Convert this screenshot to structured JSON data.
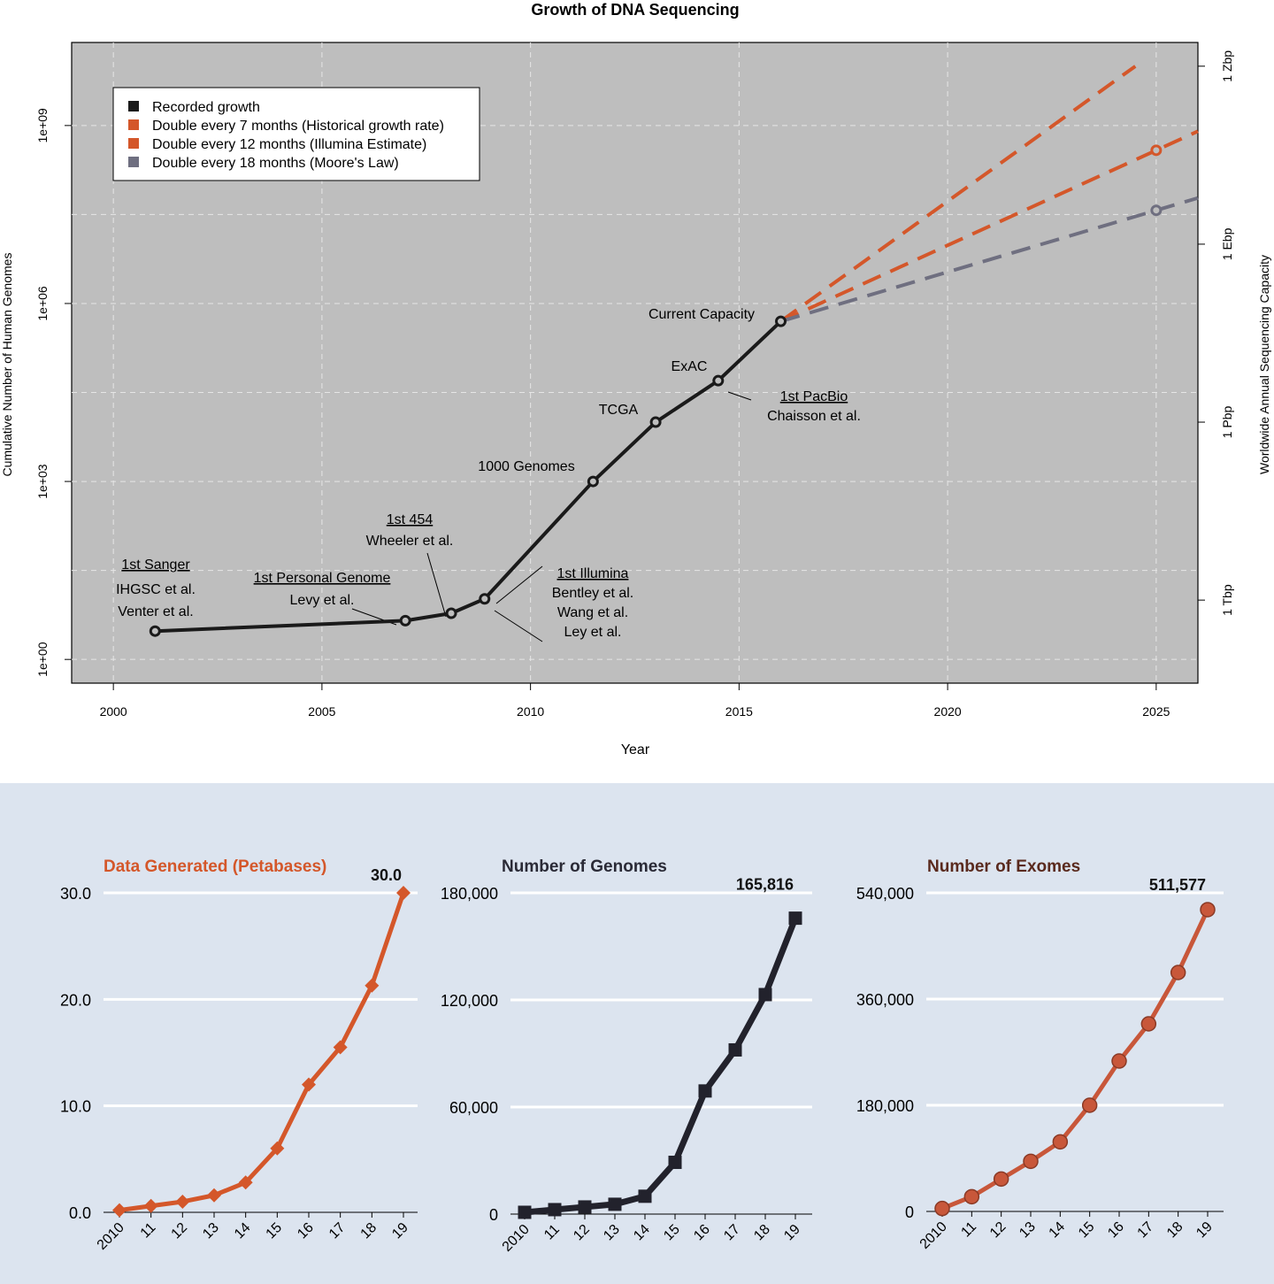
{
  "chart_data": [
    {
      "type": "line",
      "title": "Growth of DNA Sequencing",
      "xlabel": "Year",
      "ylabel": "Cumulative Number of Human Genomes",
      "y2label": "Worldwide Annual Sequencing Capacity",
      "xlim": [
        1999,
        2026
      ],
      "xticks": [
        2000,
        2005,
        2010,
        2015,
        2020,
        2025
      ],
      "y_scale": "log10",
      "ylim_log10": [
        -0.4,
        10.4
      ],
      "yticks": [
        {
          "value": 1,
          "label": "1e+00"
        },
        {
          "value": 1000,
          "label": "1e+03"
        },
        {
          "value": 1000000,
          "label": "1e+06"
        },
        {
          "value": 1000000000,
          "label": "1e+09"
        }
      ],
      "y2ticks": [
        {
          "value": 10,
          "label": "1 Tbp"
        },
        {
          "value": 10000,
          "label": "1 Pbp"
        },
        {
          "value": 10000000,
          "label": "1 Ebp"
        },
        {
          "value": 10000000000,
          "label": "1 Zbp"
        }
      ],
      "grid": true,
      "background": "#bebebe",
      "legend_position": "top-left",
      "series": [
        {
          "name": "Recorded growth",
          "color": "#1a1a1a",
          "style": "solid",
          "points": [
            {
              "x": 2001,
              "y": 3
            },
            {
              "x": 2007,
              "y": 4.5
            },
            {
              "x": 2008.1,
              "y": 6
            },
            {
              "x": 2008.9,
              "y": 10.5
            },
            {
              "x": 2011.5,
              "y": 1000
            },
            {
              "x": 2013,
              "y": 10000
            },
            {
              "x": 2014.5,
              "y": 50000
            },
            {
              "x": 2016,
              "y": 500000
            }
          ]
        },
        {
          "name": "Double every 7 months (Historical growth rate)",
          "color": "#d4572a",
          "style": "dashed",
          "points": [
            {
              "x": 2016,
              "y": 500000
            },
            {
              "x": 2024.5,
              "y": 10000000000
            }
          ]
        },
        {
          "name": "Double every 12 months (Illumina Estimate)",
          "color": "#d4572a",
          "style": "dashed",
          "marker_x": 2025,
          "points": [
            {
              "x": 2016,
              "y": 500000
            },
            {
              "x": 2026,
              "y": 800000000
            }
          ]
        },
        {
          "name": "Double every 18 months (Moore's Law)",
          "color": "#6f6f80",
          "style": "dashed",
          "marker_x": 2025,
          "points": [
            {
              "x": 2016,
              "y": 500000
            },
            {
              "x": 2026,
              "y": 60000000
            }
          ]
        }
      ],
      "annotations": [
        {
          "lines": [
            {
              "text": "1st Sanger",
              "underline": true
            },
            {
              "text": "IHGSC et al."
            },
            {
              "text": "Venter et al."
            }
          ]
        },
        {
          "lines": [
            {
              "text": "1st Personal Genome",
              "underline": true
            },
            {
              "text": "Levy et al."
            }
          ]
        },
        {
          "lines": [
            {
              "text": "1st 454",
              "underline": true
            },
            {
              "text": "Wheeler et al."
            }
          ]
        },
        {
          "lines": [
            {
              "text": "1st Illumina",
              "underline": true
            },
            {
              "text": "Bentley et al."
            },
            {
              "text": "Wang et al."
            },
            {
              "text": "Ley et al."
            }
          ]
        },
        {
          "lines": [
            {
              "text": "1000 Genomes"
            }
          ]
        },
        {
          "lines": [
            {
              "text": "TCGA"
            }
          ]
        },
        {
          "lines": [
            {
              "text": "ExAC"
            }
          ]
        },
        {
          "lines": [
            {
              "text": "1st PacBio",
              "underline": true
            },
            {
              "text": "Chaisson et al."
            }
          ]
        },
        {
          "lines": [
            {
              "text": "Current Capacity"
            }
          ]
        }
      ]
    },
    {
      "type": "line",
      "title": "Data Generated (Petabases)",
      "title_color": "#d4572a",
      "color": "#d4572a",
      "marker": "diamond",
      "categories": [
        "2010",
        "11",
        "12",
        "13",
        "14",
        "15",
        "16",
        "17",
        "18",
        "19"
      ],
      "values": [
        0.2,
        0.6,
        1.0,
        1.6,
        2.8,
        6.0,
        12.0,
        15.5,
        21.3,
        30.0
      ],
      "ylim": [
        0,
        30
      ],
      "yticks": [
        "0.0",
        "10.0",
        "20.0",
        "30.0"
      ],
      "ytick_values": [
        0,
        10,
        20,
        30
      ],
      "callout": "30.0"
    },
    {
      "type": "line",
      "title": "Number of Genomes",
      "title_color": "#2a2a36",
      "color": "#22222c",
      "marker": "square",
      "categories": [
        "2010",
        "11",
        "12",
        "13",
        "14",
        "15",
        "16",
        "17",
        "18",
        "19"
      ],
      "values": [
        1000,
        2500,
        4000,
        5500,
        10000,
        29000,
        69000,
        92000,
        123000,
        165816
      ],
      "ylim": [
        0,
        180000
      ],
      "yticks": [
        "0",
        "60,000",
        "120,000",
        "180,000"
      ],
      "ytick_values": [
        0,
        60000,
        120000,
        180000
      ],
      "callout": "165,816"
    },
    {
      "type": "line",
      "title": "Number of Exomes",
      "title_color": "#5a2a1e",
      "color": "#c8573a",
      "marker": "circle",
      "categories": [
        "2010",
        "11",
        "12",
        "13",
        "14",
        "15",
        "16",
        "17",
        "18",
        "19"
      ],
      "values": [
        5000,
        25000,
        55000,
        85000,
        118000,
        180000,
        255000,
        318000,
        405000,
        511577
      ],
      "ylim": [
        0,
        540000
      ],
      "yticks": [
        "0",
        "180,000",
        "360,000",
        "540,000"
      ],
      "ytick_values": [
        0,
        180000,
        360000,
        540000
      ],
      "callout": "511,577"
    }
  ]
}
